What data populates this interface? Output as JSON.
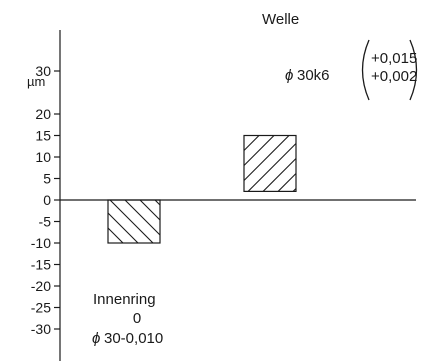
{
  "diagram": {
    "unit_label": "µm",
    "axis_ticks": [
      {
        "value": 30,
        "label": "30"
      },
      {
        "value": 20,
        "label": "20"
      },
      {
        "value": 15,
        "label": "15"
      },
      {
        "value": 10,
        "label": "10"
      },
      {
        "value": 5,
        "label": "5"
      },
      {
        "value": 0,
        "label": "0"
      },
      {
        "value": -5,
        "label": "-5"
      },
      {
        "value": -10,
        "label": "-10"
      },
      {
        "value": -15,
        "label": "-15"
      },
      {
        "value": -20,
        "label": "-20"
      },
      {
        "value": -25,
        "label": "-25"
      },
      {
        "value": -30,
        "label": "-30"
      }
    ],
    "shaft": {
      "title": "Welle",
      "designation_symbol": "ϕ",
      "designation": "30k6",
      "upper_deviation": "+0,015",
      "lower_deviation": "+0,002",
      "upper_um": 15,
      "lower_um": 2
    },
    "inner_ring": {
      "title": "Innenring",
      "upper_label": "0",
      "designation_symbol": "ϕ",
      "designation": "30-0,010",
      "upper_um": 0,
      "lower_um": -10
    }
  }
}
